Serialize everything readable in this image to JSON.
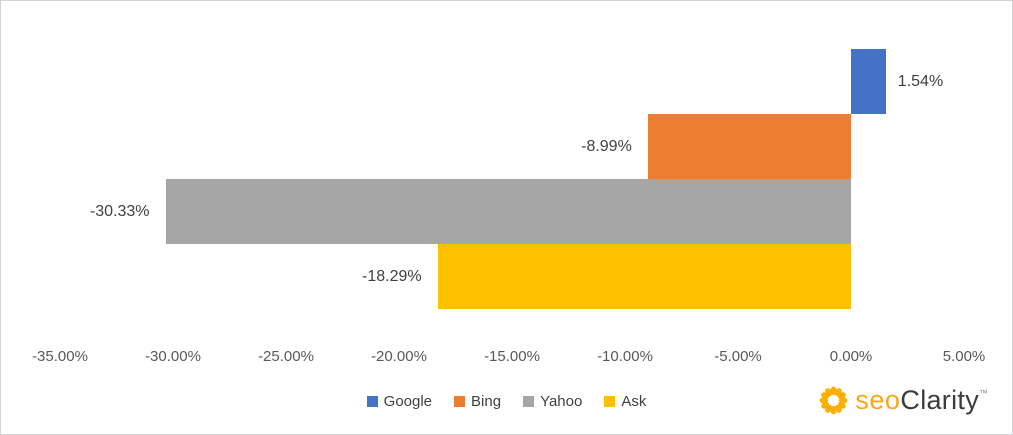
{
  "chart_data": {
    "type": "bar",
    "orientation": "horizontal",
    "categories": [
      "Google",
      "Bing",
      "Yahoo",
      "Ask"
    ],
    "values": [
      1.54,
      -8.99,
      -30.33,
      -18.29
    ],
    "data_labels": [
      "1.54%",
      "-8.99%",
      "-30.33%",
      "-18.29%"
    ],
    "colors": [
      "#4472C4",
      "#ED7D31",
      "#A6A6A6",
      "#FFC000"
    ],
    "xlim": [
      -35,
      5
    ],
    "x_ticks": [
      -35,
      -30,
      -25,
      -20,
      -15,
      -10,
      -5,
      0,
      5
    ],
    "x_tick_labels": [
      "-35.00%",
      "-30.00%",
      "-25.00%",
      "-20.00%",
      "-15.00%",
      "-10.00%",
      "-5.00%",
      "0.00%",
      "5.00%"
    ],
    "grid": false,
    "legend_position": "bottom",
    "legend": [
      {
        "label": "Google",
        "color": "#4472C4"
      },
      {
        "label": "Bing",
        "color": "#ED7D31"
      },
      {
        "label": "Yahoo",
        "color": "#A6A6A6"
      },
      {
        "label": "Ask",
        "color": "#FFC000"
      }
    ]
  },
  "branding": {
    "seo": "seo",
    "clarity": "Clarity",
    "trademark": "™",
    "icon_color": "#f9b000"
  }
}
